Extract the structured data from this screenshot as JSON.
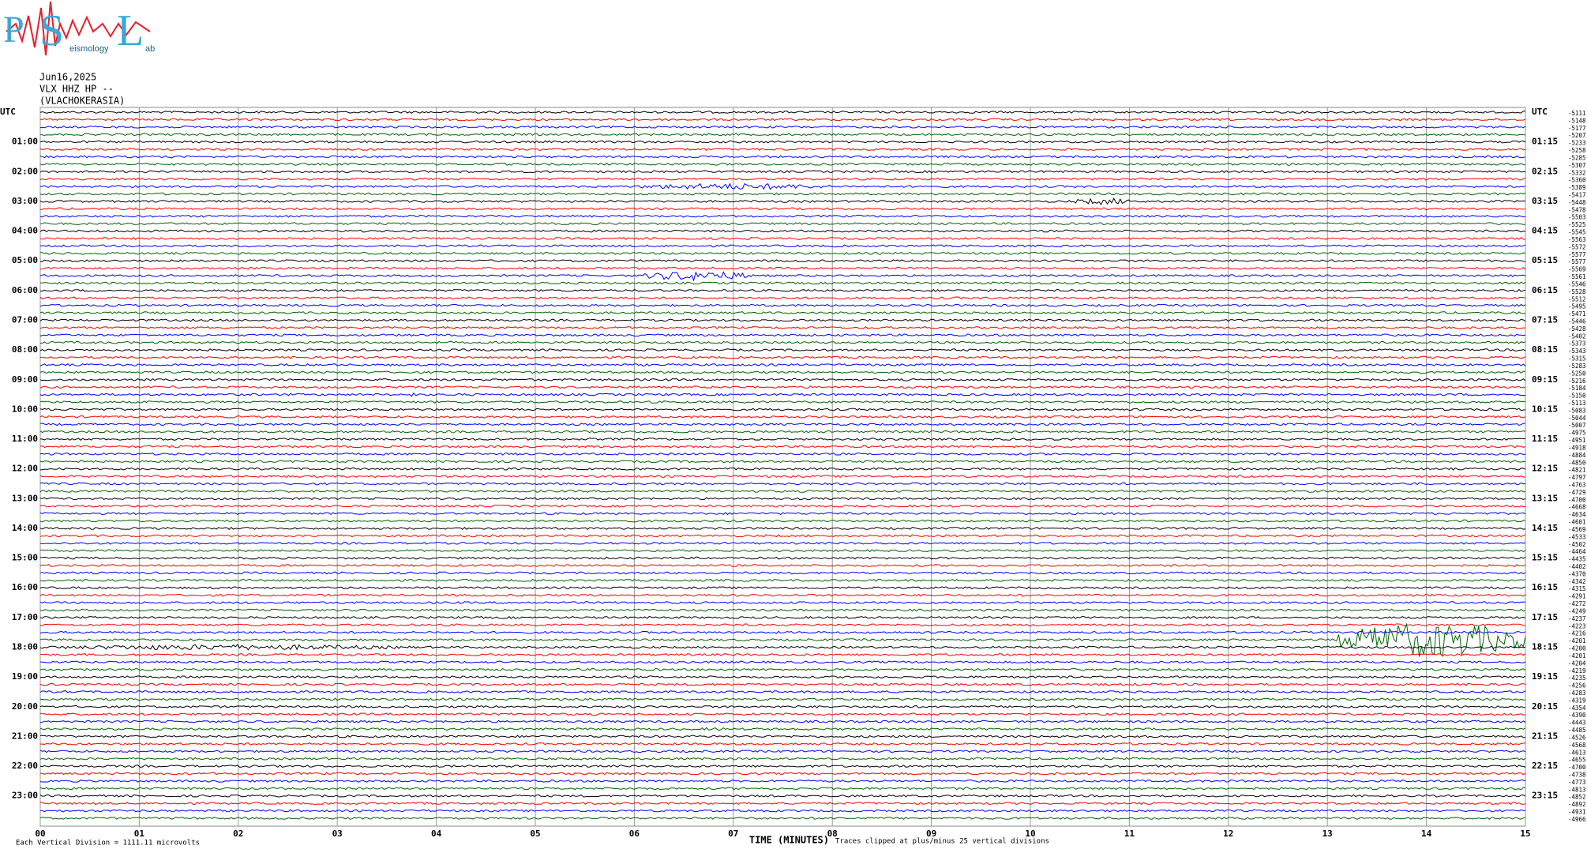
{
  "header": {
    "logo_letters": [
      "P",
      "S",
      "L"
    ],
    "logo_small": [
      "eismology",
      "ab"
    ],
    "date": "Jun16,2025",
    "station": "VLX HHZ HP --",
    "site": "(VLACHOKERASIA)"
  },
  "left_labels": [
    "UTC",
    "01:00",
    "02:00",
    "03:00",
    "04:00",
    "05:00",
    "06:00",
    "07:00",
    "08:00",
    "09:00",
    "10:00",
    "11:00",
    "12:00",
    "13:00",
    "14:00",
    "15:00",
    "16:00",
    "17:00",
    "18:00",
    "19:00",
    "20:00",
    "21:00",
    "22:00",
    "23:00"
  ],
  "right_labels": [
    "UTC",
    "01:15",
    "02:15",
    "03:15",
    "04:15",
    "05:15",
    "06:15",
    "07:15",
    "08:15",
    "09:15",
    "10:15",
    "11:15",
    "12:15",
    "13:15",
    "14:15",
    "15:15",
    "16:15",
    "17:15",
    "18:15",
    "19:15",
    "20:15",
    "21:15",
    "22:15",
    "23:15"
  ],
  "offsets": [
    -5111,
    -5148,
    -5177,
    -5207,
    -5233,
    -5258,
    -5285,
    -5307,
    -5332,
    -5360,
    -5389,
    -5417,
    -5448,
    -5478,
    -5503,
    -5525,
    -5545,
    -5563,
    -5572,
    -5577,
    -5577,
    -5569,
    -5561,
    -5546,
    -5528,
    -5512,
    -5495,
    -5471,
    -5446,
    -5428,
    -5402,
    -5373,
    -5343,
    -5315,
    -5283,
    -5250,
    -5216,
    -5184,
    -5150,
    -5113,
    -5083,
    -5044,
    -5007,
    -4975,
    -4951,
    -4918,
    -4884,
    -4850,
    -4821,
    -4797,
    -4763,
    -4729,
    -4700,
    -4668,
    -4634,
    -4601,
    -4569,
    -4533,
    -4502,
    -4464,
    -4435,
    -4402,
    -4370,
    -4342,
    -4315,
    -4291,
    -4272,
    -4249,
    -4237,
    -4223,
    -4216,
    -4201,
    -4200,
    -4201,
    -4204,
    -4219,
    -4235,
    -4256,
    -4283,
    -4319,
    -4354,
    -4390,
    -4443,
    -4485,
    -4526,
    -4568,
    -4613,
    -4655,
    -4700,
    -4738,
    -4773,
    -4813,
    -4852,
    -4892,
    -4931,
    -4966
  ],
  "trace_colors": [
    "#000000",
    "#ff0000",
    "#0000ff",
    "#006400"
  ],
  "xlim": [
    0,
    15
  ],
  "xticks": [
    {
      "value": 0,
      "label": "00"
    },
    {
      "value": 1,
      "label": "01"
    },
    {
      "value": 2,
      "label": "02"
    },
    {
      "value": 3,
      "label": "03"
    },
    {
      "value": 4,
      "label": "04"
    },
    {
      "value": 5,
      "label": "05"
    },
    {
      "value": 6,
      "label": "06"
    },
    {
      "value": 7,
      "label": "07"
    },
    {
      "value": 8,
      "label": "08"
    },
    {
      "value": 9,
      "label": "09"
    },
    {
      "value": 10,
      "label": "10"
    },
    {
      "value": 11,
      "label": "11"
    },
    {
      "value": 12,
      "label": "12"
    },
    {
      "value": 13,
      "label": "13"
    },
    {
      "value": 14,
      "label": "14"
    },
    {
      "value": 15,
      "label": "15"
    }
  ],
  "footer": {
    "scale": "Each Vertical Division = 1111.11 microvolts",
    "xlabel": "TIME (MINUTES)",
    "clip": "Traces clipped at plus/minus 25 vertical divisions"
  }
}
